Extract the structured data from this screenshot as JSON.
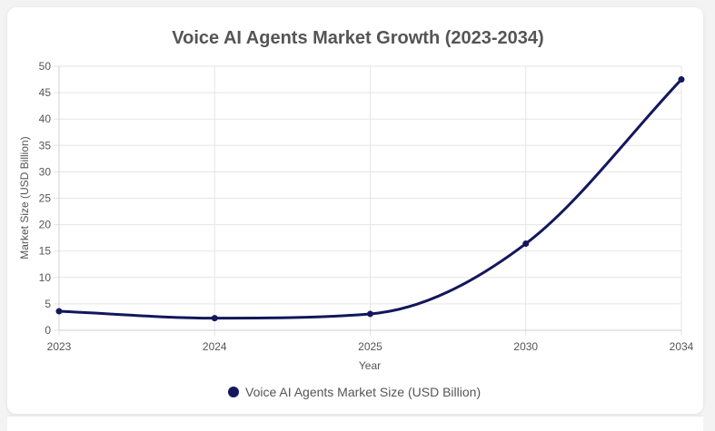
{
  "chart_data": {
    "type": "line",
    "title": "Voice AI Agents Market Growth (2023-2034)",
    "xlabel": "Year",
    "ylabel": "Market Size (USD Billion)",
    "categories": [
      "2023",
      "2024",
      "2025",
      "2030",
      "2034"
    ],
    "ylim": [
      0,
      50
    ],
    "yticks": [
      0,
      5,
      10,
      15,
      20,
      25,
      30,
      35,
      40,
      45,
      50
    ],
    "series": [
      {
        "name": "Voice AI Agents Market Size (USD Billion)",
        "values": [
          3.6,
          2.3,
          3.1,
          16.4,
          47.5
        ],
        "color": "#13175c"
      }
    ],
    "grid": true,
    "legend": "bottom-center"
  }
}
